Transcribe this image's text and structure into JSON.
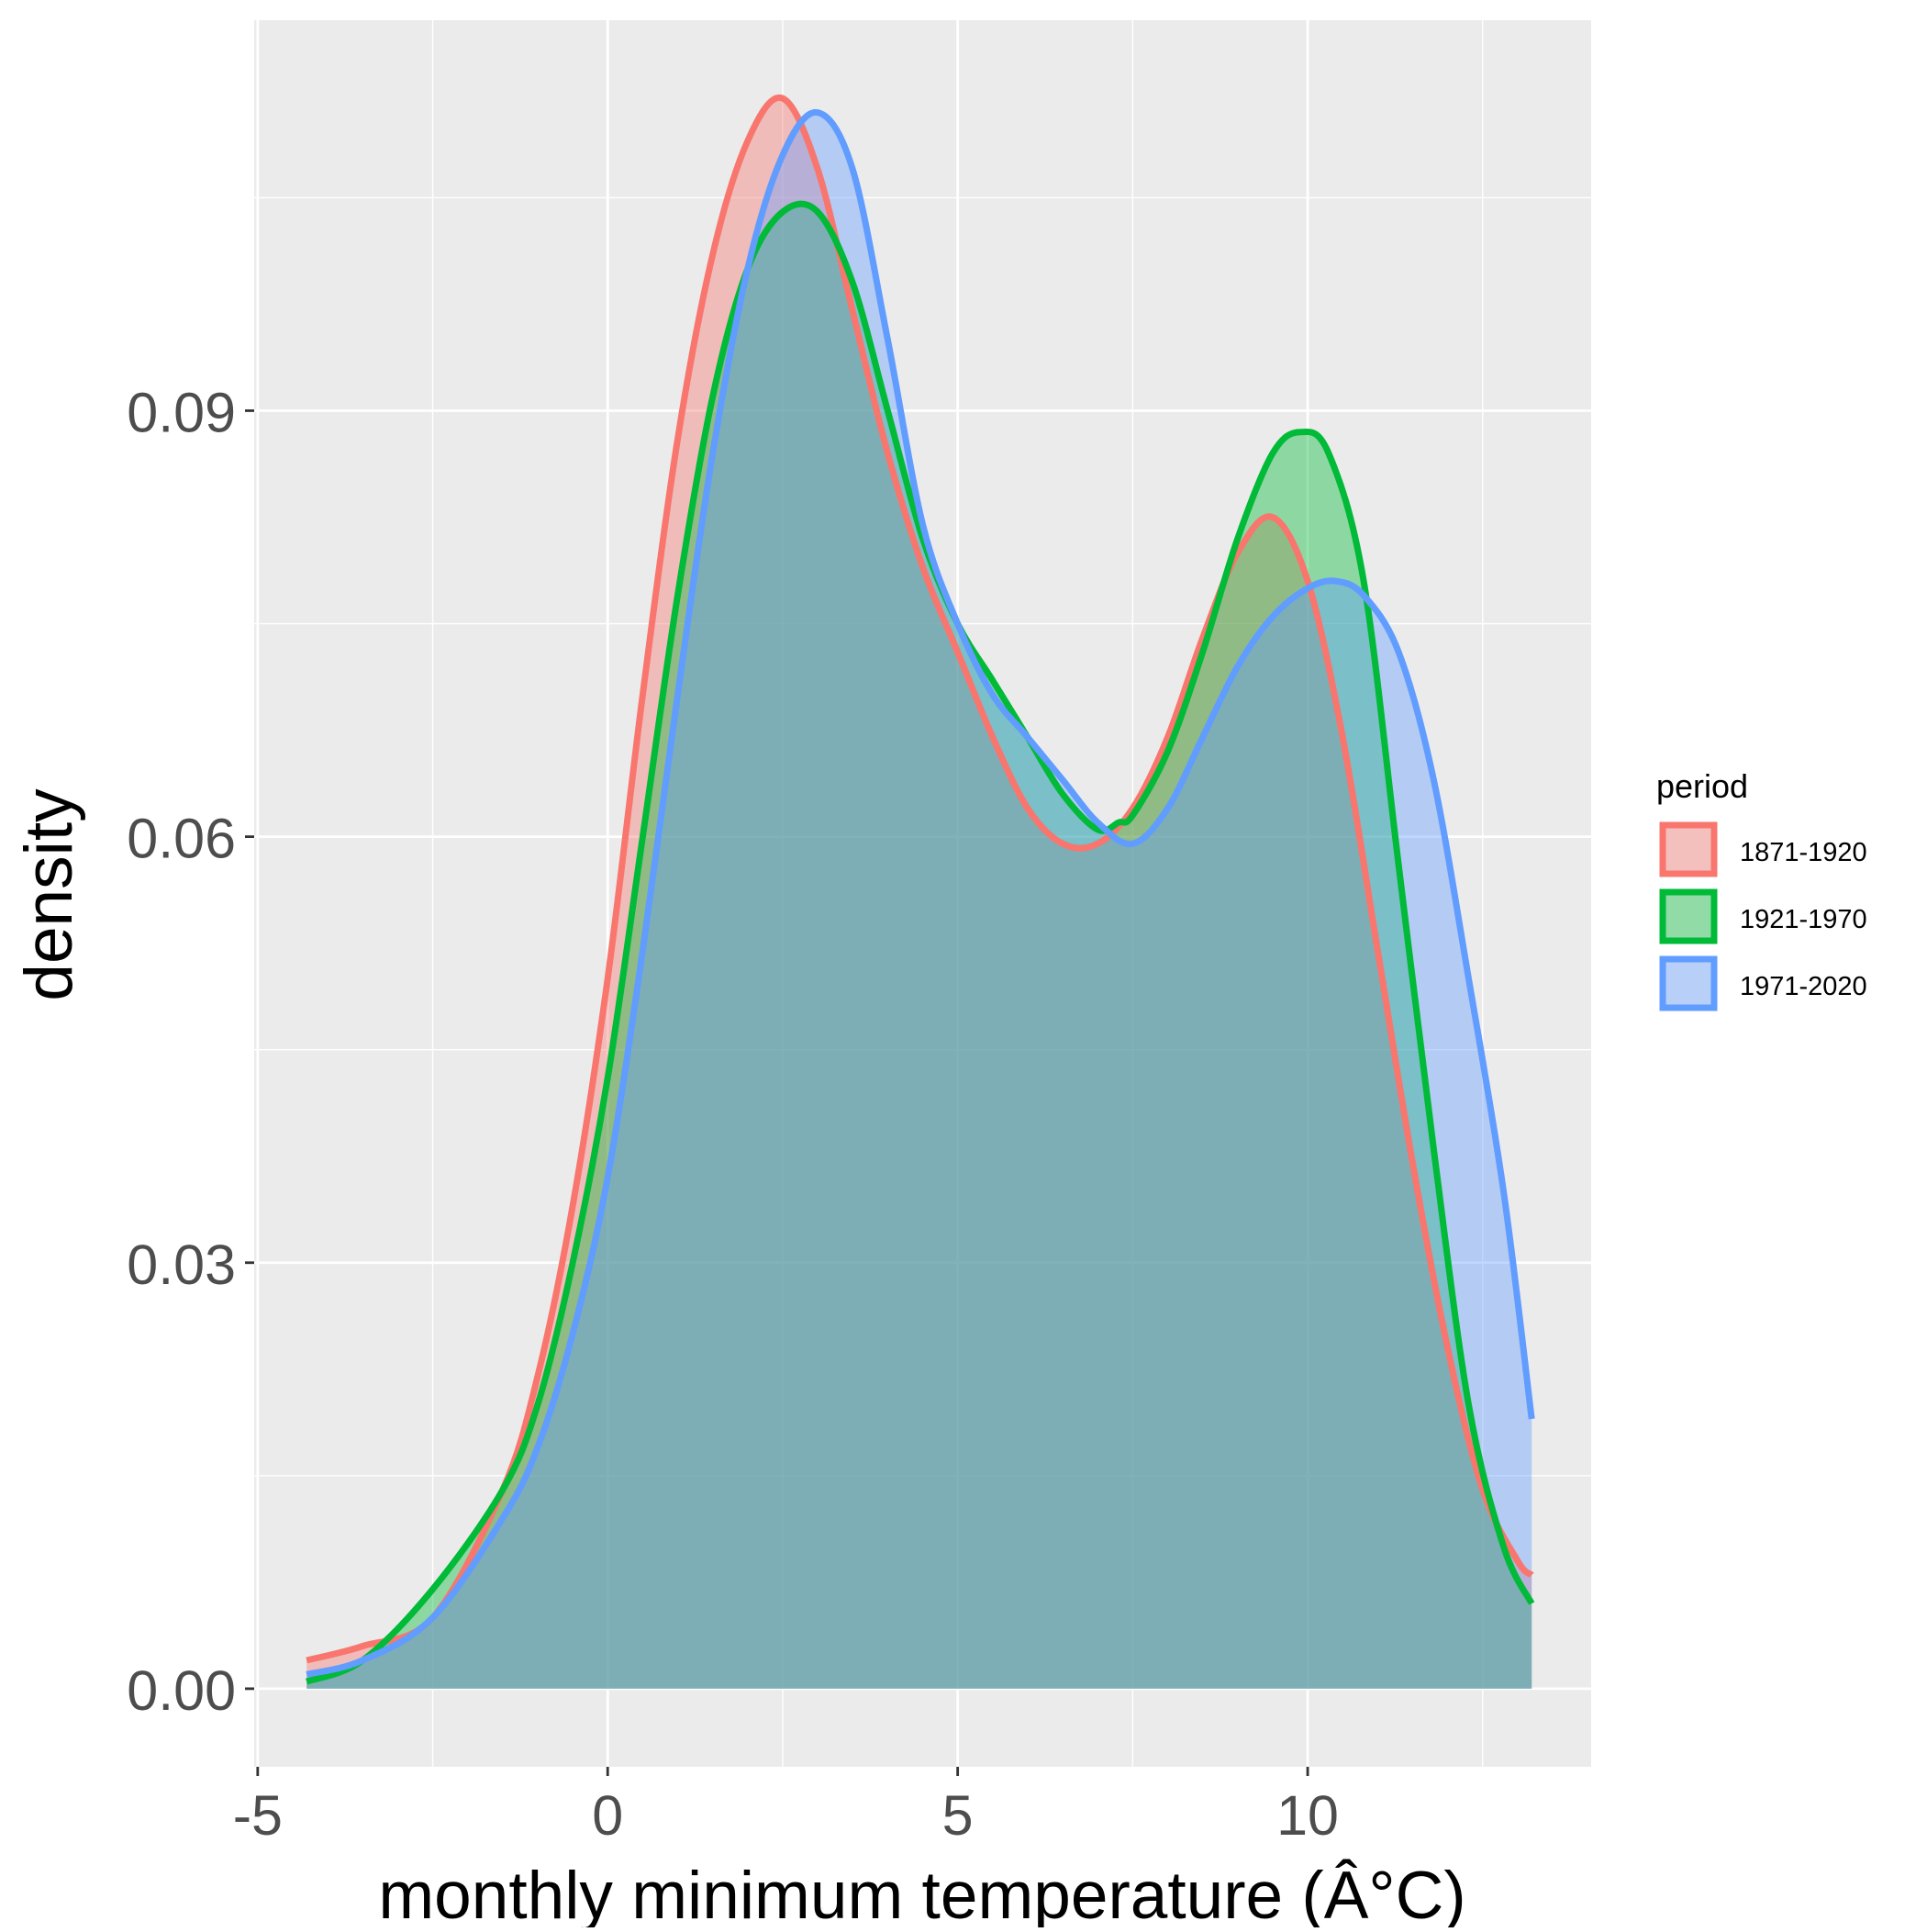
{
  "chart_data": {
    "type": "area",
    "subtype": "density",
    "xlabel": "monthly minimum temperature (Â°C)",
    "ylabel": "density",
    "xlim": [
      -5.05,
      14.05
    ],
    "ylim": [
      -0.0055,
      0.1175
    ],
    "x_ticks": [
      -5,
      0,
      5,
      10
    ],
    "x_tick_labels": [
      "-5",
      "0",
      "5",
      "10"
    ],
    "y_ticks": [
      0.0,
      0.03,
      0.06,
      0.09
    ],
    "y_tick_labels": [
      "0.00",
      "0.03",
      "0.06",
      "0.09"
    ],
    "grid": true,
    "legend": {
      "title": "period",
      "position": "right"
    },
    "series": [
      {
        "name": "1871-1920",
        "color": "#F8766D",
        "points": [
          [
            -4.3,
            0.002
          ],
          [
            -3.5,
            0.003
          ],
          [
            -2.5,
            0.005
          ],
          [
            -1.5,
            0.014
          ],
          [
            -1.0,
            0.022
          ],
          [
            -0.5,
            0.034
          ],
          [
            0.0,
            0.05
          ],
          [
            0.5,
            0.07
          ],
          [
            1.0,
            0.088
          ],
          [
            1.5,
            0.101
          ],
          [
            2.0,
            0.109
          ],
          [
            2.5,
            0.112
          ],
          [
            3.0,
            0.107
          ],
          [
            3.5,
            0.097
          ],
          [
            4.0,
            0.087
          ],
          [
            4.5,
            0.079
          ],
          [
            5.0,
            0.073
          ],
          [
            5.5,
            0.067
          ],
          [
            6.0,
            0.062
          ],
          [
            6.5,
            0.0595
          ],
          [
            7.0,
            0.0595
          ],
          [
            7.5,
            0.062
          ],
          [
            8.0,
            0.067
          ],
          [
            8.5,
            0.074
          ],
          [
            9.0,
            0.08
          ],
          [
            9.5,
            0.0825
          ],
          [
            10.0,
            0.078
          ],
          [
            10.5,
            0.067
          ],
          [
            11.0,
            0.052
          ],
          [
            11.5,
            0.037
          ],
          [
            12.0,
            0.024
          ],
          [
            12.5,
            0.014
          ],
          [
            13.0,
            0.009
          ],
          [
            13.2,
            0.008
          ]
        ]
      },
      {
        "name": "1921-1970",
        "color": "#00BA38",
        "points": [
          [
            -4.3,
            0.0005
          ],
          [
            -3.5,
            0.002
          ],
          [
            -2.5,
            0.007
          ],
          [
            -1.5,
            0.014
          ],
          [
            -1.0,
            0.02
          ],
          [
            -0.5,
            0.03
          ],
          [
            0.0,
            0.043
          ],
          [
            0.5,
            0.06
          ],
          [
            1.0,
            0.077
          ],
          [
            1.5,
            0.091
          ],
          [
            2.0,
            0.1
          ],
          [
            2.5,
            0.104
          ],
          [
            3.0,
            0.104
          ],
          [
            3.5,
            0.099
          ],
          [
            4.0,
            0.09
          ],
          [
            4.5,
            0.081
          ],
          [
            5.0,
            0.075
          ],
          [
            5.5,
            0.071
          ],
          [
            6.0,
            0.067
          ],
          [
            6.5,
            0.063
          ],
          [
            7.0,
            0.0605
          ],
          [
            7.3,
            0.061
          ],
          [
            7.5,
            0.0615
          ],
          [
            8.0,
            0.066
          ],
          [
            8.5,
            0.073
          ],
          [
            9.0,
            0.081
          ],
          [
            9.5,
            0.087
          ],
          [
            9.9,
            0.0885
          ],
          [
            10.3,
            0.087
          ],
          [
            10.8,
            0.078
          ],
          [
            11.3,
            0.058
          ],
          [
            11.8,
            0.038
          ],
          [
            12.3,
            0.02
          ],
          [
            12.8,
            0.01
          ],
          [
            13.2,
            0.006
          ]
        ]
      },
      {
        "name": "1971-2020",
        "color": "#619CFF",
        "points": [
          [
            -4.3,
            0.001
          ],
          [
            -3.5,
            0.002
          ],
          [
            -2.5,
            0.005
          ],
          [
            -1.5,
            0.012
          ],
          [
            -1.0,
            0.017
          ],
          [
            -0.5,
            0.025
          ],
          [
            0.0,
            0.036
          ],
          [
            0.5,
            0.052
          ],
          [
            1.0,
            0.07
          ],
          [
            1.5,
            0.087
          ],
          [
            2.0,
            0.1
          ],
          [
            2.5,
            0.108
          ],
          [
            3.0,
            0.111
          ],
          [
            3.5,
            0.107
          ],
          [
            4.0,
            0.095
          ],
          [
            4.5,
            0.082
          ],
          [
            5.0,
            0.075
          ],
          [
            5.5,
            0.07
          ],
          [
            6.0,
            0.067
          ],
          [
            6.5,
            0.064
          ],
          [
            7.0,
            0.061
          ],
          [
            7.5,
            0.0595
          ],
          [
            8.0,
            0.062
          ],
          [
            8.5,
            0.067
          ],
          [
            9.0,
            0.072
          ],
          [
            9.5,
            0.0755
          ],
          [
            10.0,
            0.0775
          ],
          [
            10.4,
            0.078
          ],
          [
            10.8,
            0.077
          ],
          [
            11.3,
            0.073
          ],
          [
            11.8,
            0.064
          ],
          [
            12.3,
            0.05
          ],
          [
            12.8,
            0.035
          ],
          [
            13.2,
            0.019
          ]
        ]
      }
    ]
  }
}
